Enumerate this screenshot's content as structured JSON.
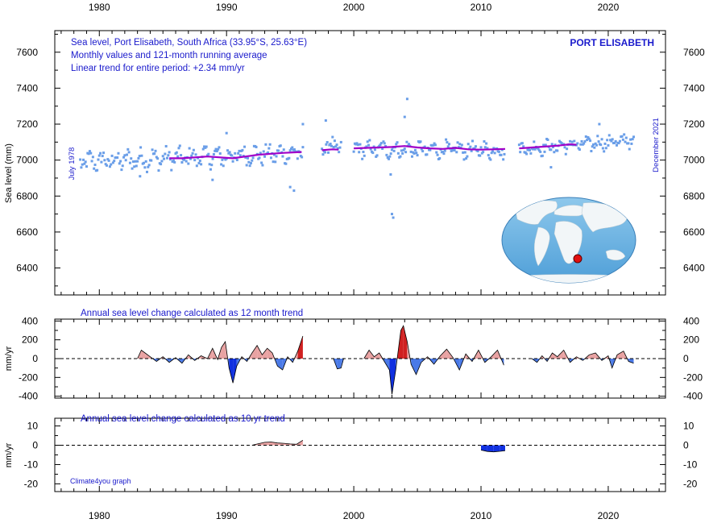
{
  "chart_data": [
    {
      "type": "scatter",
      "panel": "monthly",
      "title": "PORT ELISABETH",
      "info_lines": [
        "Sea level, Port Elisabeth, South Africa (33.95°S, 25.63°E)",
        "Monthly values and 121-month running average",
        "Linear trend for entire period: +2.34 mm/yr"
      ],
      "ylabel": "Sea level (mm)",
      "start_label": "July 1978",
      "end_label": "December 2021",
      "xlim": [
        1976.5,
        2024.5
      ],
      "ylim": [
        6250,
        7720
      ],
      "yticks": [
        6400,
        6600,
        6800,
        7000,
        7200,
        7400,
        7600
      ],
      "xticks": [
        1980,
        1990,
        2000,
        2010,
        2020
      ],
      "grid": false,
      "colors": {
        "points": "#6a9ee8",
        "running_average": "#a000c8",
        "text": "#1a1acc"
      },
      "series": [
        {
          "name": "Monthly values",
          "segments": [
            {
              "x0": 1978.5,
              "x1": 1996.0,
              "base0": 6990,
              "base1": 7040,
              "amp": 55
            },
            {
              "x0": 1997.5,
              "x1": 1999.0,
              "base0": 7080,
              "base1": 7070,
              "amp": 50
            },
            {
              "x0": 2000.0,
              "x1": 2011.9,
              "base0": 7060,
              "base1": 7055,
              "amp": 45
            },
            {
              "x0": 2013.0,
              "x1": 2022.0,
              "base0": 7060,
              "base1": 7110,
              "amp": 40
            }
          ],
          "outliers": [
            {
              "x": 1983.2,
              "y": 6910
            },
            {
              "x": 1988.9,
              "y": 6890
            },
            {
              "x": 1990.0,
              "y": 7150
            },
            {
              "x": 1995.0,
              "y": 6850
            },
            {
              "x": 1995.3,
              "y": 6830
            },
            {
              "x": 1996.0,
              "y": 7200
            },
            {
              "x": 1997.8,
              "y": 7220
            },
            {
              "x": 2002.9,
              "y": 6920
            },
            {
              "x": 2003.0,
              "y": 6700
            },
            {
              "x": 2003.1,
              "y": 6680
            },
            {
              "x": 2004.0,
              "y": 7240
            },
            {
              "x": 2004.2,
              "y": 7340
            },
            {
              "x": 2019.3,
              "y": 7200
            },
            {
              "x": 2015.5,
              "y": 6960
            }
          ]
        },
        {
          "name": "121-month running average",
          "segments": [
            [
              [
                1985.5,
                7010
              ],
              [
                1986.5,
                7010
              ],
              [
                1987.5,
                7015
              ],
              [
                1988.5,
                7020
              ],
              [
                1989.5,
                7015
              ],
              [
                1990.5,
                7010
              ],
              [
                1991.5,
                7020
              ],
              [
                1992.5,
                7030
              ],
              [
                1993.5,
                7035
              ],
              [
                1994.5,
                7040
              ],
              [
                1995.9,
                7045
              ]
            ],
            [
              [
                1997.5,
                7055
              ],
              [
                1998.3,
                7060
              ],
              [
                1998.8,
                7058
              ]
            ],
            [
              [
                2000.0,
                7065
              ],
              [
                2001.0,
                7068
              ],
              [
                2002.0,
                7070
              ],
              [
                2003.0,
                7073
              ],
              [
                2004.0,
                7078
              ],
              [
                2005.0,
                7070
              ],
              [
                2006.0,
                7065
              ],
              [
                2007.0,
                7062
              ],
              [
                2008.0,
                7068
              ],
              [
                2009.0,
                7060
              ],
              [
                2010.0,
                7058
              ],
              [
                2011.0,
                7060
              ],
              [
                2011.9,
                7062
              ]
            ],
            [
              [
                2013.0,
                7065
              ],
              [
                2014.0,
                7070
              ],
              [
                2015.0,
                7075
              ],
              [
                2016.0,
                7080
              ],
              [
                2017.0,
                7088
              ],
              [
                2017.5,
                7085
              ]
            ]
          ]
        }
      ]
    },
    {
      "type": "area",
      "panel": "12-month trend",
      "annotation": "Annual sea level change calculated as 12 month trend",
      "ylabel": "mm/yr",
      "xlim": [
        1976.5,
        2024.5
      ],
      "ylim": [
        -420,
        420
      ],
      "yticks": [
        -400,
        -200,
        0,
        200,
        400
      ],
      "zero_line": "dashed",
      "colors": {
        "positive": "#e8a2a2",
        "positive_dark": "#d02020",
        "negative": "#4a7ae8",
        "negative_dark": "#1030e0"
      },
      "segments": [
        [
          [
            1983.0,
            0
          ],
          [
            1983.3,
            90
          ],
          [
            1983.6,
            60
          ],
          [
            1984.0,
            20
          ],
          [
            1984.5,
            -30
          ],
          [
            1985.0,
            20
          ],
          [
            1985.5,
            -40
          ],
          [
            1986.0,
            10
          ],
          [
            1986.5,
            -50
          ],
          [
            1987.0,
            40
          ],
          [
            1987.5,
            -20
          ],
          [
            1988.0,
            30
          ],
          [
            1988.5,
            0
          ],
          [
            1988.9,
            110
          ],
          [
            1989.3,
            -10
          ],
          [
            1989.6,
            120
          ],
          [
            1989.9,
            180
          ],
          [
            1990.2,
            -100
          ],
          [
            1990.5,
            -260
          ],
          [
            1990.8,
            -80
          ],
          [
            1991.2,
            20
          ],
          [
            1991.6,
            -30
          ],
          [
            1992.0,
            60
          ],
          [
            1992.4,
            140
          ],
          [
            1992.8,
            40
          ],
          [
            1993.2,
            110
          ],
          [
            1993.6,
            60
          ],
          [
            1994.0,
            -80
          ],
          [
            1994.4,
            -120
          ],
          [
            1994.8,
            20
          ],
          [
            1995.2,
            -40
          ],
          [
            1995.6,
            80
          ],
          [
            1996.0,
            240
          ]
        ],
        [
          [
            1998.4,
            0
          ],
          [
            1998.7,
            -110
          ],
          [
            1999.0,
            -100
          ],
          [
            1999.2,
            0
          ]
        ],
        [
          [
            2000.8,
            0
          ],
          [
            2001.2,
            90
          ],
          [
            2001.6,
            20
          ],
          [
            2002.0,
            60
          ],
          [
            2002.4,
            -30
          ],
          [
            2002.8,
            -120
          ],
          [
            2003.0,
            -380
          ],
          [
            2003.3,
            -120
          ],
          [
            2003.7,
            300
          ],
          [
            2003.9,
            350
          ],
          [
            2004.2,
            180
          ],
          [
            2004.5,
            -60
          ],
          [
            2004.9,
            -170
          ],
          [
            2005.3,
            -40
          ],
          [
            2005.8,
            20
          ],
          [
            2006.3,
            -60
          ],
          [
            2006.8,
            30
          ],
          [
            2007.3,
            100
          ],
          [
            2007.8,
            10
          ],
          [
            2008.3,
            -120
          ],
          [
            2008.8,
            50
          ],
          [
            2009.3,
            -30
          ],
          [
            2009.8,
            90
          ],
          [
            2010.3,
            -40
          ],
          [
            2010.8,
            20
          ],
          [
            2011.3,
            90
          ],
          [
            2011.8,
            -70
          ]
        ],
        [
          [
            2014.0,
            0
          ],
          [
            2014.4,
            -40
          ],
          [
            2014.8,
            30
          ],
          [
            2015.2,
            -30
          ],
          [
            2015.6,
            60
          ],
          [
            2016.0,
            20
          ],
          [
            2016.5,
            90
          ],
          [
            2017.0,
            -40
          ],
          [
            2017.5,
            20
          ],
          [
            2018.0,
            -20
          ],
          [
            2018.5,
            40
          ],
          [
            2019.0,
            60
          ],
          [
            2019.5,
            -20
          ],
          [
            2020.0,
            30
          ],
          [
            2020.3,
            -100
          ],
          [
            2020.7,
            40
          ],
          [
            2021.2,
            80
          ],
          [
            2021.6,
            -30
          ],
          [
            2022.0,
            -50
          ]
        ]
      ]
    },
    {
      "type": "area",
      "panel": "10-yr trend",
      "annotation": "Annual sea level change calculated as 10 yr trend",
      "ylabel": "mm/yr",
      "credit": "Climate4you graph",
      "xlim": [
        1976.5,
        2024.5
      ],
      "ylim": [
        -24,
        14
      ],
      "yticks": [
        -20,
        -10,
        0,
        10
      ],
      "zero_line": "dashed",
      "colors": {
        "positive": "#e8a2a2",
        "negative": "#1030e0"
      },
      "segments": [
        [
          [
            1992.0,
            0
          ],
          [
            1992.5,
            0.8
          ],
          [
            1993.0,
            1.5
          ],
          [
            1993.5,
            1.7
          ],
          [
            1994.0,
            1.2
          ],
          [
            1994.5,
            1.0
          ],
          [
            1995.0,
            0.7
          ],
          [
            1995.5,
            0.5
          ],
          [
            1996.0,
            2.6
          ]
        ],
        [
          [
            2010.0,
            -2.5
          ],
          [
            2010.5,
            -3.2
          ],
          [
            2011.0,
            -3.4
          ],
          [
            2011.5,
            -3.1
          ],
          [
            2011.9,
            -2.8
          ]
        ]
      ]
    }
  ]
}
